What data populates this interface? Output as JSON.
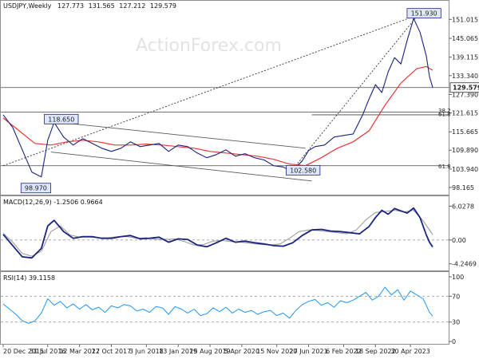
{
  "chart_data": [
    {
      "type": "line",
      "panel": "price",
      "title": "USDJPY,Weekly",
      "ohlc": {
        "open": "127.773",
        "high": "131.565",
        "low": "127.212",
        "close": "129.579"
      },
      "watermark": "ActionForex.com",
      "y_axis_labels": [
        "151.015",
        "145.065",
        "139.115",
        "133.340",
        "127.390",
        "121.615",
        "115.665",
        "109.890",
        "103.940",
        "98.165"
      ],
      "ylim": [
        96.9,
        153.6
      ],
      "last_price_label": "129.579",
      "price_labels": [
        {
          "text": "151.930",
          "x": 128,
          "y": 151.93
        },
        {
          "text": "118.650",
          "x": 14,
          "y": 118.65
        },
        {
          "text": "98.970",
          "x": 6,
          "y": 98.97
        },
        {
          "text": "102.580",
          "x": 90,
          "y": 102.58
        }
      ],
      "fib_labels": [
        {
          "text": "38.2",
          "y": 122.5
        },
        {
          "text": "61.8",
          "y": 121.3
        },
        {
          "text": "61.8",
          "y": 104.9
        }
      ],
      "horizontal_lines": [
        129.579,
        121.9,
        105.0
      ],
      "fib_level_line": 121.0,
      "trendlines": [
        {
          "x": [
            0,
            129
          ],
          "y": [
            105.0,
            151.93
          ]
        },
        {
          "x": [
            90,
            130
          ],
          "y": [
            102.58,
            151.93
          ]
        },
        {
          "x": [
            15,
            95
          ],
          "y": [
            118.9,
            110.5
          ]
        },
        {
          "x": [
            15,
            97
          ],
          "y": [
            109.3,
            100.2
          ]
        }
      ],
      "series": [
        {
          "name": "price",
          "x": [
            0,
            3,
            6,
            9,
            12,
            14,
            16,
            19,
            22,
            25,
            28,
            31,
            34,
            37,
            40,
            43,
            46,
            49,
            52,
            55,
            58,
            61,
            64,
            67,
            70,
            73,
            76,
            79,
            82,
            85,
            88,
            90,
            92,
            94,
            96,
            98,
            101,
            104,
            107,
            110,
            113,
            115,
            117,
            119,
            121,
            123,
            125,
            127,
            129,
            131,
            133,
            134,
            135
          ],
          "y": [
            121.0,
            117.0,
            110.0,
            103.0,
            101.5,
            113.0,
            118.6,
            114.0,
            111.5,
            113.5,
            112.0,
            110.5,
            109.5,
            110.5,
            112.5,
            111.0,
            111.5,
            112.0,
            109.5,
            111.5,
            111.0,
            109.0,
            107.5,
            108.5,
            110.0,
            108.0,
            108.8,
            107.5,
            106.8,
            105.0,
            104.6,
            103.5,
            104.5,
            106.5,
            109.8,
            111.0,
            111.5,
            114.0,
            114.5,
            115.0,
            121.0,
            126.0,
            130.5,
            128.0,
            134.5,
            139.0,
            137.0,
            144.5,
            151.3,
            147.0,
            139.5,
            133.0,
            129.58
          ]
        },
        {
          "name": "MA",
          "x": [
            0,
            5,
            10,
            15,
            20,
            25,
            30,
            35,
            40,
            45,
            50,
            55,
            60,
            65,
            70,
            75,
            80,
            85,
            90,
            95,
            100,
            105,
            110,
            115,
            120,
            125,
            130,
            133,
            135
          ],
          "y": [
            120.0,
            116.0,
            112.0,
            111.5,
            112.5,
            113.0,
            112.5,
            111.5,
            111.5,
            111.8,
            111.5,
            111.0,
            110.5,
            109.5,
            109.0,
            108.5,
            108.0,
            107.0,
            105.5,
            105.0,
            107.5,
            110.5,
            112.5,
            116.0,
            124.0,
            131.0,
            135.5,
            136.2,
            135.0
          ]
        }
      ]
    },
    {
      "type": "line",
      "panel": "macd",
      "title": "MACD(12,26,9) -1.2506 0.9664",
      "y_axis_labels": [
        "6.0278",
        "0.00",
        "-4.2469"
      ],
      "ylim": [
        -5.0,
        6.8
      ],
      "series": [
        {
          "name": "MACD",
          "x": [
            0,
            3,
            6,
            9,
            12,
            14,
            16,
            19,
            22,
            25,
            28,
            31,
            34,
            37,
            40,
            43,
            46,
            49,
            52,
            55,
            58,
            61,
            64,
            67,
            70,
            73,
            76,
            79,
            82,
            85,
            88,
            91,
            94,
            97,
            100,
            103,
            106,
            109,
            112,
            115,
            117,
            119,
            121,
            123,
            125,
            127,
            129,
            131,
            133,
            134,
            135
          ],
          "y": [
            1.0,
            -1.0,
            -3.0,
            -3.2,
            -1.5,
            2.5,
            3.5,
            1.5,
            0.3,
            0.6,
            0.6,
            0.3,
            0.3,
            0.6,
            0.8,
            0.2,
            0.3,
            0.5,
            -0.4,
            0.2,
            0.1,
            -0.9,
            -1.2,
            -0.5,
            0.3,
            -0.4,
            -0.2,
            -0.5,
            -0.7,
            -1.0,
            -1.1,
            -0.5,
            0.8,
            1.8,
            1.9,
            1.6,
            1.5,
            1.3,
            1.1,
            2.4,
            4.0,
            5.3,
            4.6,
            5.6,
            5.2,
            4.8,
            5.7,
            4.0,
            0.9,
            -0.4,
            -1.2506
          ]
        },
        {
          "name": "Signal",
          "x": [
            0,
            3,
            6,
            9,
            12,
            15,
            18,
            21,
            24,
            27,
            30,
            33,
            36,
            39,
            42,
            45,
            48,
            51,
            54,
            57,
            60,
            63,
            66,
            69,
            72,
            75,
            78,
            81,
            84,
            87,
            90,
            93,
            96,
            99,
            102,
            105,
            108,
            111,
            114,
            117,
            120,
            123,
            126,
            129,
            132,
            135
          ],
          "y": [
            1.2,
            -0.4,
            -2.4,
            -2.9,
            -2.0,
            1.5,
            2.5,
            0.9,
            0.5,
            0.5,
            0.4,
            0.4,
            0.6,
            0.6,
            0.3,
            0.4,
            0.1,
            0.1,
            0.2,
            -0.3,
            -0.9,
            -0.8,
            -0.2,
            -0.1,
            -0.3,
            -0.4,
            -0.6,
            -0.8,
            -0.9,
            -0.7,
            0.3,
            1.5,
            1.8,
            1.7,
            1.5,
            1.3,
            1.1,
            1.8,
            3.6,
            4.9,
            5.1,
            5.3,
            5.0,
            5.3,
            3.4,
            0.9664
          ]
        }
      ]
    },
    {
      "type": "line",
      "panel": "rsi",
      "title": "RSI(14) 39.1158",
      "y_axis_labels": [
        "100",
        "70",
        "30",
        "0"
      ],
      "ylim": [
        0,
        100
      ],
      "series": [
        {
          "name": "RSI",
          "x": [
            0,
            2,
            4,
            6,
            8,
            10,
            12,
            14,
            16,
            18,
            20,
            22,
            24,
            26,
            28,
            30,
            32,
            34,
            36,
            38,
            40,
            42,
            44,
            46,
            48,
            50,
            52,
            54,
            56,
            58,
            60,
            62,
            64,
            66,
            68,
            70,
            72,
            74,
            76,
            78,
            80,
            82,
            84,
            86,
            88,
            90,
            92,
            94,
            96,
            98,
            100,
            102,
            104,
            106,
            108,
            110,
            112,
            114,
            116,
            118,
            120,
            122,
            124,
            126,
            128,
            130,
            132,
            134,
            135
          ],
          "y": [
            58,
            50,
            42,
            32,
            28,
            32,
            44,
            66,
            56,
            62,
            52,
            58,
            50,
            57,
            49,
            53,
            45,
            55,
            52,
            57,
            55,
            47,
            50,
            45,
            54,
            52,
            42,
            54,
            50,
            44,
            50,
            40,
            43,
            52,
            46,
            53,
            44,
            50,
            45,
            48,
            42,
            46,
            48,
            40,
            44,
            36,
            48,
            57,
            62,
            65,
            56,
            60,
            53,
            63,
            60,
            64,
            70,
            76,
            64,
            70,
            84,
            72,
            80,
            64,
            78,
            72,
            66,
            45,
            39.1158
          ]
        }
      ]
    }
  ],
  "date_labels": [
    {
      "text": "20 Dec 2015",
      "x": 0
    },
    {
      "text": "31 Jul 2016",
      "x": 14
    },
    {
      "text": "12 Mar 2017",
      "x": 24
    },
    {
      "text": "22 Oct 2017",
      "x": 34
    },
    {
      "text": "3 Jun 2018",
      "x": 45
    },
    {
      "text": "13 Jan 2019",
      "x": 55
    },
    {
      "text": "25 Aug 2019",
      "x": 65
    },
    {
      "text": "5 Apr 2020",
      "x": 75
    },
    {
      "text": "15 Nov 2020",
      "x": 86
    },
    {
      "text": "27 Jun 2021",
      "x": 96
    },
    {
      "text": "6 Feb 2022",
      "x": 107
    },
    {
      "text": "18 Sep 2022",
      "x": 117
    },
    {
      "text": "30 Apr 2023",
      "x": 128
    }
  ],
  "colors": {
    "price": "#1a237e",
    "ma": "#e53935",
    "macd": "#1a237e",
    "signal": "#9e9e9e",
    "rsi": "#2196f3",
    "trendline": "#333333",
    "channel": "#5a5a5a",
    "hline": "#444444",
    "watermark": "#e3e3e3",
    "label_bg": "#dfe7ff",
    "label_border": "#1a237e"
  }
}
